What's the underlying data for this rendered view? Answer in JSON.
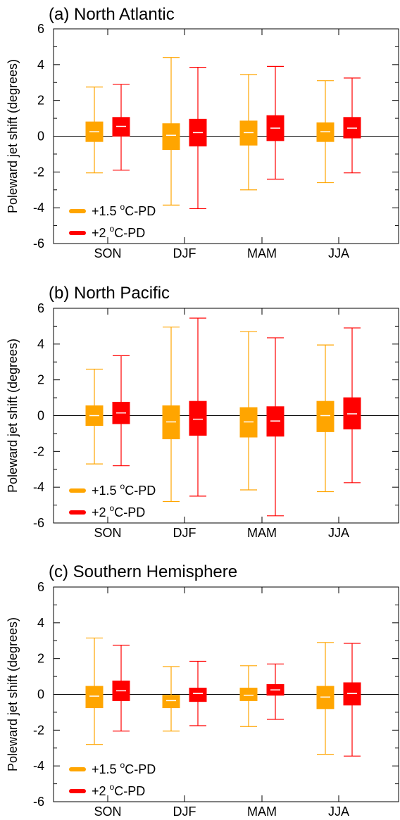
{
  "colors": {
    "series_1": "#FFA500",
    "series_2": "#FF0000",
    "axes": "#000000",
    "median": "#FFFFFF"
  },
  "chart_data": [
    {
      "type": "box",
      "title": "(a) North Atlantic",
      "ylabel": "Poleward jet shift (degrees)",
      "ylim": [
        -6,
        6
      ],
      "yticks": [
        "6",
        "4",
        "2",
        "0",
        "-2",
        "-4",
        "-6"
      ],
      "zero_line": true,
      "legend_placement": "bottom-left",
      "categories": [
        "SON",
        "DJF",
        "MAM",
        "JJA"
      ],
      "series": [
        {
          "name": "+1.5 °C-PD",
          "label_main": "+1.5 ",
          "label_deg": "o",
          "label_tail": "C-PD",
          "boxes": [
            {
              "min": -2.05,
              "q1": -0.3,
              "median": 0.25,
              "q3": 0.8,
              "max": 2.75
            },
            {
              "min": -3.85,
              "q1": -0.75,
              "median": 0.05,
              "q3": 0.7,
              "max": 4.4
            },
            {
              "min": -3.0,
              "q1": -0.5,
              "median": 0.2,
              "q3": 0.85,
              "max": 3.45
            },
            {
              "min": -2.6,
              "q1": -0.3,
              "median": 0.25,
              "q3": 0.75,
              "max": 3.1
            }
          ]
        },
        {
          "name": "+2 °C-PD",
          "label_main": "+2 ",
          "label_deg": "o",
          "label_tail": "C-PD",
          "boxes": [
            {
              "min": -1.9,
              "q1": 0.0,
              "median": 0.55,
              "q3": 1.05,
              "max": 2.9
            },
            {
              "min": -4.05,
              "q1": -0.55,
              "median": 0.2,
              "q3": 0.95,
              "max": 3.85
            },
            {
              "min": -2.4,
              "q1": -0.25,
              "median": 0.45,
              "q3": 1.15,
              "max": 3.9
            },
            {
              "min": -2.05,
              "q1": -0.1,
              "median": 0.45,
              "q3": 1.05,
              "max": 3.25
            }
          ]
        }
      ]
    },
    {
      "type": "box",
      "title": "(b) North Pacific",
      "ylabel": "Poleward jet shift (degrees)",
      "ylim": [
        -6,
        6
      ],
      "yticks": [
        "6",
        "4",
        "2",
        "0",
        "-2",
        "-4",
        "-6"
      ],
      "zero_line": true,
      "legend_placement": "bottom-left",
      "categories": [
        "SON",
        "DJF",
        "MAM",
        "JJA"
      ],
      "series": [
        {
          "name": "+1.5 °C-PD",
          "label_main": "+1.5 ",
          "label_deg": "o",
          "label_tail": "C-PD",
          "boxes": [
            {
              "min": -2.7,
              "q1": -0.55,
              "median": 0.0,
              "q3": 0.55,
              "max": 2.6
            },
            {
              "min": -4.8,
              "q1": -1.3,
              "median": -0.35,
              "q3": 0.55,
              "max": 4.95
            },
            {
              "min": -4.15,
              "q1": -1.2,
              "median": -0.35,
              "q3": 0.45,
              "max": 4.7
            },
            {
              "min": -4.25,
              "q1": -0.9,
              "median": 0.0,
              "q3": 0.8,
              "max": 3.95
            }
          ]
        },
        {
          "name": "+2 °C-PD",
          "label_main": "+2 ",
          "label_deg": "o",
          "label_tail": "C-PD",
          "boxes": [
            {
              "min": -2.8,
              "q1": -0.45,
              "median": 0.15,
              "q3": 0.75,
              "max": 3.35
            },
            {
              "min": -4.5,
              "q1": -1.1,
              "median": -0.2,
              "q3": 0.8,
              "max": 5.45
            },
            {
              "min": -5.6,
              "q1": -1.15,
              "median": -0.3,
              "q3": 0.5,
              "max": 4.35
            },
            {
              "min": -3.75,
              "q1": -0.75,
              "median": 0.1,
              "q3": 1.0,
              "max": 4.9
            }
          ]
        }
      ]
    },
    {
      "type": "box",
      "title": "(c) Southern Hemisphere",
      "ylabel": "Poleward jet shift (degrees)",
      "ylim": [
        -6,
        6
      ],
      "yticks": [
        "6",
        "4",
        "2",
        "0",
        "-2",
        "-4",
        "-6"
      ],
      "zero_line": true,
      "legend_placement": "bottom-left",
      "categories": [
        "SON",
        "DJF",
        "MAM",
        "JJA"
      ],
      "series": [
        {
          "name": "+1.5 °C-PD",
          "label_main": "+1.5 ",
          "label_deg": "o",
          "label_tail": "C-PD",
          "boxes": [
            {
              "min": -2.8,
              "q1": -0.75,
              "median": -0.1,
              "q3": 0.45,
              "max": 3.15
            },
            {
              "min": -2.05,
              "q1": -0.75,
              "median": -0.35,
              "q3": -0.05,
              "max": 1.55
            },
            {
              "min": -1.8,
              "q1": -0.35,
              "median": -0.05,
              "q3": 0.35,
              "max": 1.6
            },
            {
              "min": -3.35,
              "q1": -0.8,
              "median": -0.15,
              "q3": 0.45,
              "max": 2.9
            }
          ]
        },
        {
          "name": "+2 °C-PD",
          "label_main": "+2 ",
          "label_deg": "o",
          "label_tail": "C-PD",
          "boxes": [
            {
              "min": -2.05,
              "q1": -0.35,
              "median": 0.2,
              "q3": 0.75,
              "max": 2.75
            },
            {
              "min": -1.75,
              "q1": -0.4,
              "median": 0.05,
              "q3": 0.35,
              "max": 1.85
            },
            {
              "min": -1.4,
              "q1": -0.05,
              "median": 0.25,
              "q3": 0.55,
              "max": 1.7
            },
            {
              "min": -3.45,
              "q1": -0.6,
              "median": 0.05,
              "q3": 0.65,
              "max": 2.85
            }
          ]
        }
      ]
    }
  ]
}
